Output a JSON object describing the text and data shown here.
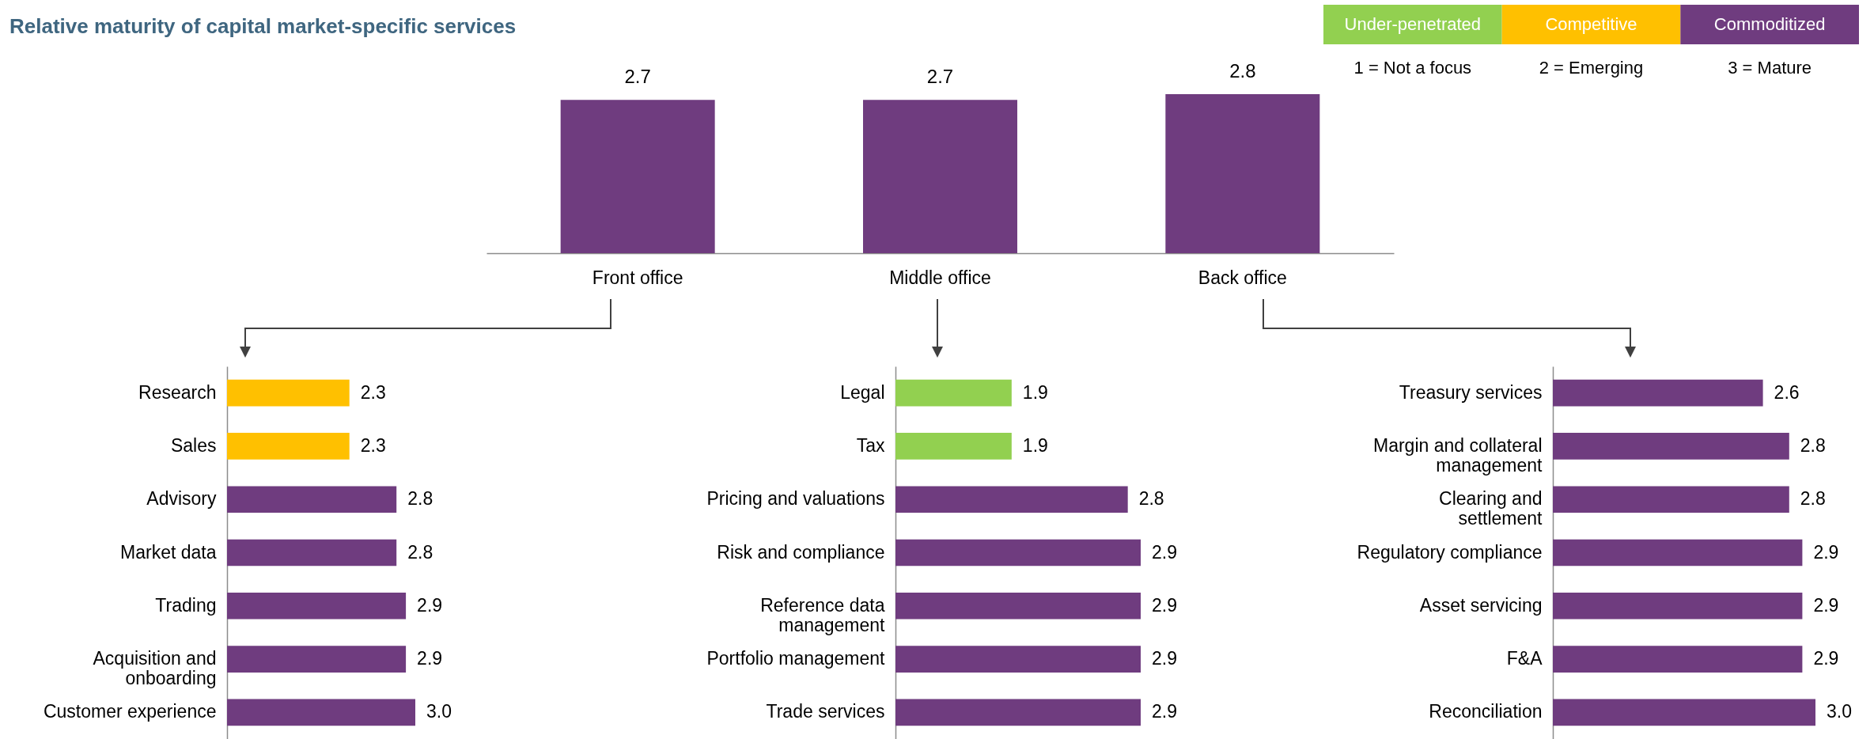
{
  "chart_data": [
    {
      "type": "bar",
      "title": "Relative maturity of capital market-specific services",
      "categories": [
        "Front office",
        "Middle office",
        "Back office"
      ],
      "values": [
        2.7,
        2.7,
        2.8
      ],
      "color": "#6f3c7f",
      "data_labels": true,
      "tick_labels": "x"
    },
    {
      "type": "bar",
      "orientation": "horizontal",
      "categories": [
        "Research",
        "Sales",
        "Advisory",
        "Market data",
        "Trading",
        "Acquisition and onboarding",
        "Customer experience"
      ],
      "values": [
        2.3,
        2.3,
        2.8,
        2.8,
        2.9,
        2.9,
        3.0
      ],
      "value_labels": [
        "2.3",
        "2.3",
        "2.8",
        "2.8",
        "2.9",
        "2.9",
        "3.0"
      ],
      "colors": [
        "#ffc000",
        "#ffc000",
        "#6f3c7f",
        "#6f3c7f",
        "#6f3c7f",
        "#6f3c7f",
        "#6f3c7f"
      ],
      "xlim": [
        1,
        3
      ],
      "tick_labels": "y"
    },
    {
      "type": "bar",
      "orientation": "horizontal",
      "categories": [
        "Legal",
        "Tax",
        "Pricing and valuations",
        "Risk and compliance",
        "Reference data management",
        "Portfolio management",
        "Trade services"
      ],
      "values": [
        1.9,
        1.9,
        2.8,
        2.9,
        2.9,
        2.9,
        2.9
      ],
      "colors": [
        "#92d050",
        "#92d050",
        "#6f3c7f",
        "#6f3c7f",
        "#6f3c7f",
        "#6f3c7f",
        "#6f3c7f"
      ],
      "xlim": [
        1,
        2.9
      ],
      "data_labels": true,
      "tick_labels": "y"
    },
    {
      "type": "bar",
      "orientation": "horizontal",
      "categories": [
        "Treasury services",
        "Margin and collateral management",
        "Clearing and settlement",
        "Regulatory compliance",
        "Asset servicing",
        "F&A",
        "Reconciliation"
      ],
      "values": [
        2.6,
        2.8,
        2.8,
        2.9,
        2.9,
        2.9,
        3.0
      ],
      "value_labels": [
        "2.6",
        "2.8",
        "2.8",
        "2.9",
        "2.9",
        "2.9",
        "3.0"
      ],
      "colors": [
        "#6f3c7f",
        "#6f3c7f",
        "#6f3c7f",
        "#6f3c7f",
        "#6f3c7f",
        "#6f3c7f",
        "#6f3c7f"
      ],
      "xlim": [
        1,
        3
      ],
      "tick_labels": "y"
    },
    {
      "type": "other",
      "categories": [
        "Under-penetrated",
        "Competitive",
        "Commoditized"
      ],
      "colors": [
        "#92d050",
        "#ffc000",
        "#6f3c7f"
      ],
      "annotations": [
        "1 = Not a focus",
        "2 = Emerging",
        "3 = Mature"
      ]
    }
  ]
}
